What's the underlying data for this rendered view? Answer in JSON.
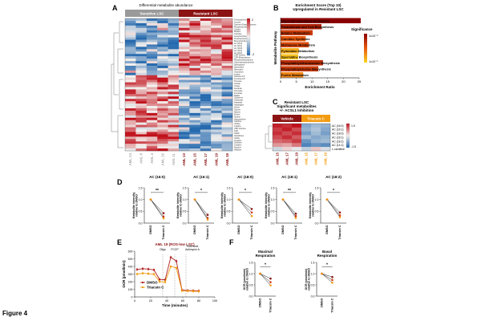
{
  "figure_label": "Figure 4",
  "colors": {
    "sensitive": "#9a9a9a",
    "resistant": "#8b1313",
    "vehicle": "#8b1313",
    "triacsin": "#f39c12",
    "hm_high": "#c0101b",
    "hm_mid": "#f4f1ee",
    "hm_low": "#2569ae",
    "dmso_line": "#b22222",
    "triacsin_line": "#f39c12"
  },
  "panels": {
    "A": {
      "letter": "A",
      "title": "Differential metabolite abundance",
      "group_sensitive": "Sensitive LSC",
      "group_resistant": "Resistant LSC",
      "scale_max": "2",
      "scale_min": "-2",
      "samples": [
        "AML 24",
        "AML 8",
        "AML 4",
        "AML 16",
        "AML 11",
        "AML 13",
        "AML 15",
        "AML 17",
        "AML 19",
        "AML 18"
      ],
      "metabolites_up": [
        "N-Acetylserine",
        "Leucine",
        "Gamma-Glutamylcysteine",
        "Phosphocholine",
        "Choline",
        "Betaine",
        "Carnitine",
        "Acetylcarnitine",
        "Propionylcarnitine",
        "Butyrylcarnitine",
        "AC (16:0)",
        "AC (16:1)",
        "AC (18:0)",
        "AC (18:1)",
        "AC (18:2)",
        "CDP-Choline",
        "CDP-Ethanolamine",
        "Phosphoethanolamine",
        "Glycerophosphocholine",
        "Sphingosine",
        "Spermidine",
        "Adenosine",
        "Guanosine",
        "Inosine"
      ],
      "metabolites_down": [
        "Glucose-6-P",
        "Fructose-6-P",
        "Pyruvate",
        "Lactate",
        "Citrate",
        "Isocitrate",
        "Succinate",
        "Fumarate",
        "Malate",
        "Glutamine",
        "Glutamate",
        "Aspartate",
        "Asparagine",
        "Serine",
        "Glycine",
        "Alanine",
        "Proline",
        "Taurine",
        "Hypoxanthine",
        "Xanthine",
        "Uridine",
        "Cytidine",
        "UDP-Glucose",
        "NAD",
        "NADP",
        "Glutathione",
        "GSSG",
        "Creatine",
        "Ornithine",
        "Citrulline",
        "Arginine",
        "Histidine"
      ]
    },
    "B": {
      "letter": "B",
      "title_line1": "Enrichment Score (Top 10)",
      "title_line2": "Upregulated in Resistant LSC",
      "ylabel": "Metabolite Pathway",
      "xlabel": "Enrichment Ratio",
      "legend_title": "Significance",
      "legend_top": "1x10⁻²",
      "legend_bottom": "1x10⁻¹"
    },
    "C": {
      "letter": "C",
      "title_line1": "Resistant LSC",
      "title_line2": "Significant metabolites",
      "title_line3": "+/- ACSL1 Inhibition",
      "group_vehicle": "Vehicle",
      "group_triacsin": "Triacsin C",
      "samples": [
        "AML 15",
        "AML 17",
        "AML 19",
        "AML 15",
        "AML 17",
        "AML 19"
      ],
      "rows": [
        "AC (16:0)",
        "AC (16:1)",
        "AC (18:0)",
        "AC (18:1)",
        "AC (18:2)",
        "AC (14:1)",
        "L-carnitine"
      ],
      "scale_max": "1.5",
      "scale_min": "-1.5"
    },
    "D": {
      "letter": "D",
      "ylabel_line1": "Metabolite intensity",
      "ylabel_line2": "relative to DMSO",
      "x_dmso": "DMSO",
      "x_triacsin": "Triacsin C"
    },
    "E": {
      "letter": "E",
      "title": "AML 19 (ROS-low LSC)",
      "ylabel": "OCR (pmol/min)",
      "xlabel": "Time (minutes)",
      "inj_oligo": "Oligo",
      "inj_fccp": "FCCP",
      "inj_rot1": "Rotenone",
      "inj_rot2": "Antimycin A",
      "legend_dmso": "DMSO",
      "legend_triacsin": "Triacsin C"
    },
    "F": {
      "letter": "F",
      "ylabel_line1": "OCR (pmol/min)",
      "ylabel_line2": "relative to DMSO",
      "x_dmso": "DMSO",
      "x_triacsin": "Triacsin C"
    }
  },
  "chart_data": [
    {
      "id": "A",
      "type": "heatmap",
      "rows": 56,
      "columns": [
        "AML 24",
        "AML 8",
        "AML 4",
        "AML 16",
        "AML 11",
        "AML 13",
        "AML 15",
        "AML 17",
        "AML 19",
        "AML 18"
      ],
      "value_range": [
        -2,
        2
      ],
      "pattern": "top 24 rows elevated in resistant samples (AML 13–18), lower 32 rows elevated in sensitive samples"
    },
    {
      "id": "B",
      "type": "bar",
      "categories": [
        "Glycerophospholipid Metabolism",
        "Pantothenate and CoA Biosynthesis",
        "Betaine Metabolism",
        "Carnitine Synthesis",
        "Methionine Metabolism",
        "Pyrimidine Metabolism",
        "Spermidine Biosynthesis",
        "Phosphatidylethanolamine Biosynthesis",
        "Phosphatidylcholine Biosynthesis",
        "Purine Metabolism"
      ],
      "values": [
        25.5,
        13.0,
        10.2,
        8.0,
        9.0,
        5.8,
        5.6,
        13.5,
        12.0,
        7.2
      ],
      "significance": [
        0.01,
        0.02,
        0.03,
        0.04,
        0.035,
        0.06,
        0.065,
        0.025,
        0.03,
        0.05
      ],
      "xlim": [
        0,
        25
      ],
      "xticks": [
        "0",
        "5",
        "10",
        "15",
        "20",
        "25"
      ]
    },
    {
      "id": "C",
      "type": "heatmap",
      "rows": [
        "AC (16:0)",
        "AC (16:1)",
        "AC (18:0)",
        "AC (18:1)",
        "AC (18:2)",
        "AC (14:1)",
        "L-carnitine"
      ],
      "columns": [
        "AML 15",
        "AML 17",
        "AML 19",
        "AML 15",
        "AML 17",
        "AML 19"
      ],
      "values": [
        [
          1.4,
          1.3,
          1.5,
          -0.8,
          -0.6,
          -0.7
        ],
        [
          1.2,
          1.4,
          1.1,
          -0.7,
          -0.5,
          -0.8
        ],
        [
          1.3,
          1.1,
          1.3,
          -0.9,
          -0.6,
          -0.9
        ],
        [
          1.1,
          1.3,
          1.0,
          -0.6,
          -0.8,
          -0.7
        ],
        [
          0.9,
          1.0,
          1.2,
          -1.0,
          -0.7,
          -0.6
        ],
        [
          0.6,
          0.5,
          0.8,
          -1.2,
          -1.0,
          -1.1
        ],
        [
          -0.3,
          0.2,
          -0.1,
          -0.4,
          0.3,
          -0.2
        ]
      ],
      "value_range": [
        -1.5,
        1.5
      ]
    },
    {
      "id": "D",
      "type": "line",
      "charts": [
        {
          "title": "AC (16:0)",
          "sig": "**",
          "ylim": [
            0,
            1.5
          ],
          "yticks": [
            "0.0",
            "0.5",
            "1.0",
            "1.5"
          ],
          "series": [
            {
              "name": "AML 15",
              "values": [
                1.0,
                0.42
              ]
            },
            {
              "name": "AML 17",
              "values": [
                1.0,
                0.28
              ]
            },
            {
              "name": "AML 19",
              "values": [
                1.0,
                0.2
              ]
            }
          ]
        },
        {
          "title": "AC (16:1)",
          "sig": "*",
          "ylim": [
            0,
            1.5
          ],
          "yticks": [
            "0.0",
            "0.5",
            "1.0",
            "1.5"
          ],
          "series": [
            {
              "name": "AML 15",
              "values": [
                1.0,
                0.35
              ]
            },
            {
              "name": "AML 17",
              "values": [
                1.0,
                0.22
              ]
            },
            {
              "name": "AML 19",
              "values": [
                1.0,
                0.15
              ]
            }
          ]
        },
        {
          "title": "AC (18:0)",
          "sig": "*",
          "ylim": [
            0,
            1.5
          ],
          "yticks": [
            "0.0",
            "0.5",
            "1.0",
            "1.5"
          ],
          "series": [
            {
              "name": "AML 15",
              "values": [
                1.0,
                0.6
              ]
            },
            {
              "name": "AML 17",
              "values": [
                1.0,
                0.45
              ]
            },
            {
              "name": "AML 19",
              "values": [
                1.0,
                0.3
              ]
            }
          ]
        },
        {
          "title": "AC (18:1)",
          "sig": "**",
          "ylim": [
            0,
            1.5
          ],
          "yticks": [
            "0.0",
            "0.5",
            "1.0",
            "1.5"
          ],
          "series": [
            {
              "name": "AML 15",
              "values": [
                1.0,
                0.4
              ]
            },
            {
              "name": "AML 17",
              "values": [
                1.0,
                0.3
              ]
            },
            {
              "name": "AML 19",
              "values": [
                1.0,
                0.22
              ]
            }
          ]
        },
        {
          "title": "AC (18:2)",
          "sig": "*",
          "ylim": [
            0,
            1.5
          ],
          "yticks": [
            "0.0",
            "0.5",
            "1.0",
            "1.5"
          ],
          "series": [
            {
              "name": "AML 15",
              "values": [
                1.0,
                0.45
              ]
            },
            {
              "name": "AML 17",
              "values": [
                1.0,
                0.33
              ]
            },
            {
              "name": "AML 19",
              "values": [
                1.0,
                0.25
              ]
            }
          ]
        }
      ]
    },
    {
      "id": "E",
      "type": "line",
      "x": [
        3,
        10,
        17,
        24,
        31,
        38,
        45,
        52,
        59,
        66,
        73,
        80
      ],
      "series": [
        {
          "name": "DMSO",
          "values": [
            360,
            370,
            365,
            355,
            230,
            225,
            520,
            470,
            90,
            85,
            82,
            80
          ]
        },
        {
          "name": "Triacsin C",
          "values": [
            300,
            310,
            305,
            300,
            200,
            195,
            400,
            380,
            80,
            78,
            75,
            72
          ]
        }
      ],
      "xlim": [
        0,
        100
      ],
      "ylim": [
        0,
        600
      ],
      "xticks": [
        "0",
        "20",
        "40",
        "60",
        "80",
        "100"
      ],
      "yticks": [
        "0",
        "100",
        "200",
        "300",
        "400",
        "500",
        "600"
      ],
      "injections_x": [
        35,
        50,
        64
      ]
    },
    {
      "id": "F",
      "type": "line",
      "charts": [
        {
          "title_line1": "Maximal",
          "title_line2": "Respiration",
          "sig": "*",
          "ylim": [
            0,
            1.5
          ],
          "yticks": [
            "0.0",
            "0.5",
            "1.0",
            "1.5"
          ],
          "series": [
            {
              "name": "AML 15",
              "values": [
                1.0,
                0.78
              ]
            },
            {
              "name": "AML 17",
              "values": [
                1.0,
                0.62
              ]
            },
            {
              "name": "AML 19",
              "values": [
                1.0,
                0.48
              ]
            }
          ]
        },
        {
          "title_line1": "Basal",
          "title_line2": "Respiration",
          "sig": "*",
          "ylim": [
            0,
            1.5
          ],
          "yticks": [
            "0.0",
            "0.5",
            "1.0",
            "1.5"
          ],
          "series": [
            {
              "name": "AML 15",
              "values": [
                1.0,
                0.85
              ]
            },
            {
              "name": "AML 17",
              "values": [
                1.0,
                0.72
              ]
            },
            {
              "name": "AML 19",
              "values": [
                1.0,
                0.6
              ]
            }
          ]
        }
      ]
    }
  ]
}
